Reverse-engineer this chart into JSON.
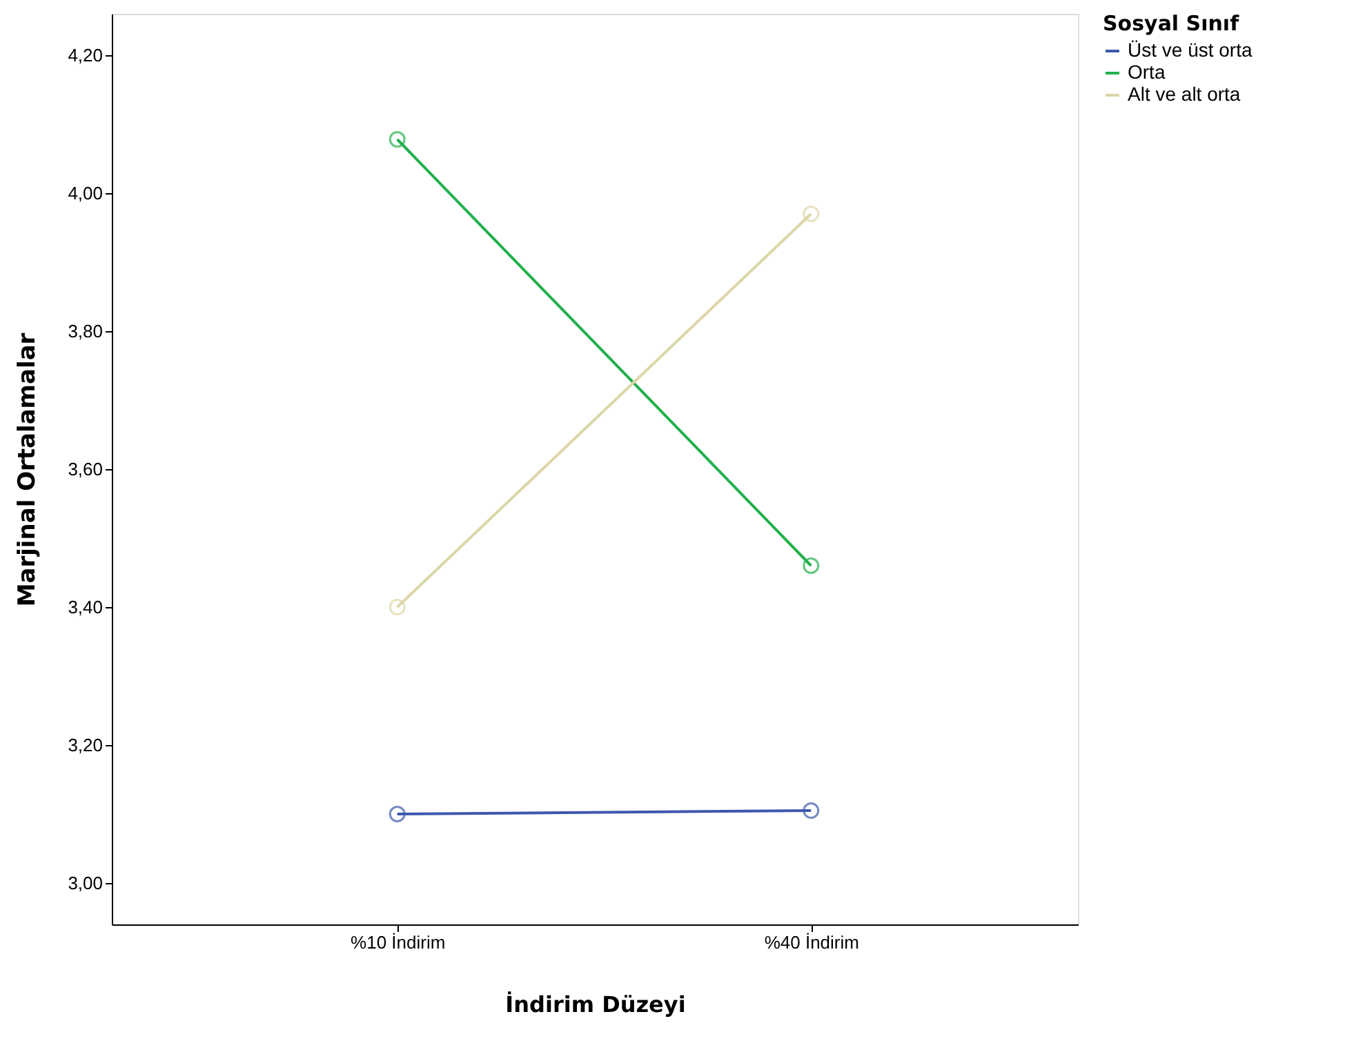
{
  "chart_data": {
    "type": "line",
    "xlabel": "İndirim Düzeyi",
    "ylabel": "Marjinal Ortalamalar",
    "legend_title": "Sosyal Sınıf",
    "categories": [
      "%10 İndirim",
      "%40 İndirim"
    ],
    "series": [
      {
        "name": "Üst ve üst orta",
        "color": "#3e58ac",
        "values": [
          3.1,
          3.105
        ]
      },
      {
        "name": "Orta",
        "color": "#21b04b",
        "values": [
          4.078,
          3.46
        ]
      },
      {
        "name": "Alt ve alt orta",
        "color": "#dcd6a8",
        "values": [
          3.4,
          3.97
        ]
      }
    ],
    "ylim": [
      2.94,
      4.26
    ],
    "yticks": [
      {
        "value": 3.0,
        "label": "3,00"
      },
      {
        "value": 3.2,
        "label": "3,20"
      },
      {
        "value": 3.4,
        "label": "3,40"
      },
      {
        "value": 3.6,
        "label": "3,60"
      },
      {
        "value": 3.8,
        "label": "3,80"
      },
      {
        "value": 4.0,
        "label": "4,00"
      },
      {
        "value": 4.2,
        "label": "4,20"
      }
    ],
    "grid": false,
    "legend": "top right",
    "marker": "circle",
    "line_style": "solid"
  }
}
